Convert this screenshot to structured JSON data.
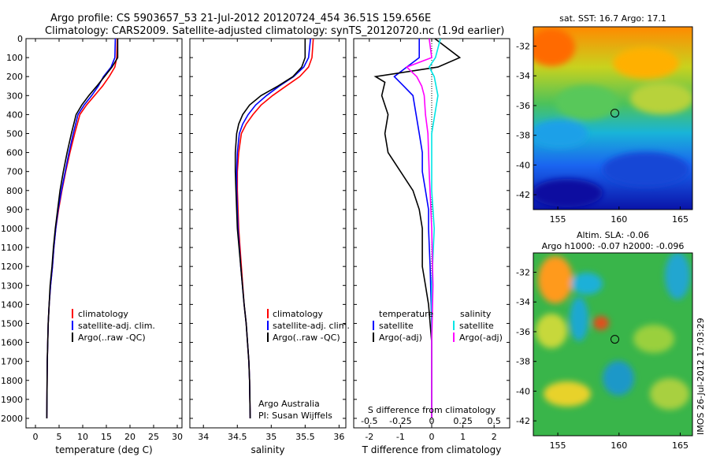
{
  "header": {
    "title_line1": "Argo profile: CS 5903657_53 21-Jul-2012 20120724_454 36.51S 159.656E",
    "title_line2": "Climatology: CARS2009. Satellite-adjusted climatology: synTS_20120720.nc (1.9d earlier)"
  },
  "colors": {
    "climatology": "#ff0000",
    "satellite": "#0000ff",
    "argo": "#000000",
    "sal_sat": "#00e5e5",
    "sal_argo": "#ff00ff",
    "marker": "#000000"
  },
  "chart_data": [
    {
      "type": "line",
      "panel": "temperature",
      "xlabel": "temperature (deg C)",
      "xlim": [
        -2,
        31
      ],
      "xticks": [
        0,
        5,
        10,
        15,
        20,
        25,
        30
      ],
      "ylim": [
        0,
        2050
      ],
      "yticks": [
        0,
        100,
        200,
        300,
        400,
        500,
        600,
        700,
        800,
        900,
        1000,
        1100,
        1200,
        1300,
        1400,
        1500,
        1600,
        1700,
        1800,
        1900,
        2000
      ],
      "y_reversed": true,
      "legend": [
        "climatology",
        "satellite-adj. clim.",
        "Argo(..raw -QC)"
      ],
      "series": [
        {
          "name": "climatology",
          "color": "#ff0000",
          "x": [
            17.3,
            17.2,
            16.8,
            15.6,
            14.2,
            12.5,
            10.8,
            9.4,
            8.3,
            7.3,
            6.4,
            5.6,
            4.9,
            4.3,
            3.9,
            3.6,
            3.2,
            2.9,
            2.7,
            2.5,
            2.4
          ],
          "y": [
            0,
            100,
            150,
            200,
            250,
            300,
            350,
            400,
            500,
            600,
            700,
            800,
            900,
            1000,
            1100,
            1200,
            1300,
            1400,
            1500,
            1700,
            2000
          ]
        },
        {
          "name": "satellite-adj. clim.",
          "color": "#0000ff",
          "x": [
            16.9,
            16.8,
            16.0,
            14.4,
            13.3,
            11.9,
            10.3,
            9.0,
            8.0,
            7.1,
            6.3,
            5.5,
            4.8,
            4.3,
            3.9,
            3.6,
            3.2,
            2.9,
            2.7,
            2.5,
            2.4
          ],
          "y": [
            0,
            100,
            150,
            200,
            250,
            300,
            350,
            400,
            500,
            600,
            700,
            800,
            900,
            1000,
            1100,
            1200,
            1300,
            1400,
            1500,
            1700,
            2000
          ]
        },
        {
          "name": "Argo(..raw -QC)",
          "color": "#000000",
          "x": [
            17.4,
            17.4,
            16.2,
            14.6,
            13.0,
            11.3,
            9.8,
            8.6,
            7.6,
            6.7,
            5.9,
            5.2,
            4.7,
            4.2,
            3.8,
            3.5,
            3.1,
            2.9,
            2.7,
            2.5,
            2.4
          ],
          "y": [
            0,
            100,
            150,
            200,
            250,
            300,
            350,
            400,
            500,
            600,
            700,
            800,
            900,
            1000,
            1100,
            1200,
            1300,
            1400,
            1500,
            1700,
            2000
          ]
        }
      ]
    },
    {
      "type": "line",
      "panel": "salinity",
      "xlabel": "salinity",
      "xlim": [
        33.8,
        36.1
      ],
      "xticks": [
        34,
        34.5,
        35,
        35.5,
        36
      ],
      "ylim": [
        0,
        2050
      ],
      "y_reversed": true,
      "legend": [
        "climatology",
        "satellite-adj. clim.",
        "Argo(..raw -QC)"
      ],
      "annotation": [
        "Argo Australia",
        "PI: Susan Wijffels"
      ],
      "series": [
        {
          "name": "climatology",
          "color": "#ff0000",
          "x": [
            35.62,
            35.6,
            35.55,
            35.42,
            35.22,
            35.02,
            34.85,
            34.73,
            34.63,
            34.56,
            34.52,
            34.5,
            34.5,
            34.52,
            34.56,
            34.6,
            34.63,
            34.65,
            34.67,
            34.68,
            34.69
          ],
          "y": [
            0,
            100,
            150,
            200,
            250,
            300,
            350,
            400,
            450,
            500,
            600,
            700,
            800,
            1000,
            1200,
            1400,
            1500,
            1600,
            1700,
            1800,
            2000
          ]
        },
        {
          "name": "satellite-adj. clim.",
          "color": "#0000ff",
          "x": [
            35.58,
            35.55,
            35.48,
            35.33,
            35.12,
            34.93,
            34.77,
            34.66,
            34.58,
            34.53,
            34.5,
            34.49,
            34.49,
            34.51,
            34.55,
            34.6,
            34.63,
            34.65,
            34.67,
            34.68,
            34.69
          ],
          "y": [
            0,
            100,
            150,
            200,
            250,
            300,
            350,
            400,
            450,
            500,
            600,
            700,
            800,
            1000,
            1200,
            1400,
            1500,
            1600,
            1700,
            1800,
            2000
          ]
        },
        {
          "name": "Argo(..raw -QC)",
          "color": "#000000",
          "x": [
            35.5,
            35.5,
            35.45,
            35.32,
            35.1,
            34.85,
            34.68,
            34.58,
            34.52,
            34.49,
            34.47,
            34.47,
            34.48,
            34.5,
            34.55,
            34.6,
            34.63,
            34.65,
            34.67,
            34.68,
            34.69
          ],
          "y": [
            0,
            100,
            150,
            200,
            250,
            300,
            350,
            400,
            450,
            500,
            600,
            700,
            800,
            1000,
            1200,
            1400,
            1500,
            1600,
            1700,
            1800,
            2000
          ]
        }
      ]
    },
    {
      "type": "line",
      "panel": "difference",
      "xlabel": "T difference from climatology",
      "xlabel_top": "S difference from climatology",
      "xlim": [
        -2.5,
        2.5
      ],
      "xticks_T": [
        -2,
        -1,
        0,
        1,
        2
      ],
      "xticks_S": [
        "-0.5",
        "-0.25",
        "0",
        "0.25",
        "0.5"
      ],
      "ylim": [
        0,
        2050
      ],
      "y_reversed": true,
      "legend_temperature": [
        "temperature",
        "satellite",
        "Argo(-adj)"
      ],
      "legend_salinity": [
        "salinity",
        "satellite",
        "Argo(-adj)"
      ],
      "series": [
        {
          "name": "T satellite",
          "color": "#0000ff",
          "x": [
            -0.4,
            -0.4,
            -0.8,
            -1.2,
            -0.9,
            -0.6,
            -0.5,
            -0.4,
            -0.3,
            -0.3,
            -0.2,
            -0.1,
            -0.1,
            -0.05,
            0,
            0
          ],
          "y": [
            0,
            100,
            150,
            200,
            250,
            300,
            400,
            500,
            600,
            700,
            800,
            900,
            1000,
            1200,
            1500,
            2000
          ]
        },
        {
          "name": "T Argo(-adj)",
          "color": "#000000",
          "x": [
            0.1,
            0.9,
            0.2,
            -1.8,
            -1.5,
            -1.6,
            -1.4,
            -1.5,
            -1.4,
            -1.0,
            -0.6,
            -0.4,
            -0.3,
            -0.3,
            -0.2,
            -0.1,
            0,
            0
          ],
          "y": [
            0,
            100,
            150,
            200,
            230,
            300,
            400,
            500,
            600,
            700,
            800,
            900,
            1000,
            1200,
            1300,
            1400,
            1600,
            2000
          ]
        },
        {
          "name": "S satellite",
          "color": "#00e5e5",
          "x": [
            0.07,
            0.03,
            -0.02,
            0.02,
            0.05,
            0.0,
            0.0,
            0.02,
            0.0,
            0.0,
            0.0
          ],
          "y": [
            0,
            100,
            150,
            200,
            300,
            500,
            800,
            1000,
            1300,
            1600,
            2000
          ]
        },
        {
          "name": "S Argo(-adj)",
          "color": "#ff00ff",
          "x": [
            -0.02,
            0.0,
            -0.2,
            -0.12,
            -0.08,
            -0.06,
            -0.05,
            -0.03,
            -0.02,
            0.0,
            0.01,
            0.0,
            0.0
          ],
          "y": [
            0,
            100,
            150,
            200,
            250,
            300,
            400,
            500,
            700,
            1000,
            1300,
            1600,
            2000
          ]
        }
      ]
    },
    {
      "type": "heatmap",
      "panel": "sst_map",
      "title": "sat. SST: 16.7 Argo: 17.1",
      "xticks": [
        155,
        160,
        165
      ],
      "yticks": [
        -32,
        -34,
        -36,
        -38,
        -40,
        -42
      ],
      "xlim": [
        153,
        166
      ],
      "ylim": [
        -43,
        -30.7
      ],
      "marker": {
        "lon": 159.66,
        "lat": -36.51
      }
    },
    {
      "type": "heatmap",
      "panel": "sla_map",
      "title_line1": "Altim. SLA: -0.06",
      "title_line2": "Argo h1000: -0.07 h2000: -0.096",
      "xticks": [
        155,
        160,
        165
      ],
      "yticks": [
        -32,
        -34,
        -36,
        -38,
        -40,
        -42
      ],
      "xlim": [
        153,
        166
      ],
      "ylim": [
        -43,
        -30.7
      ],
      "marker": {
        "lon": 159.66,
        "lat": -36.51
      }
    }
  ],
  "footer": {
    "stamp": "IMOS 26-Jul-2012 17:03:29"
  }
}
